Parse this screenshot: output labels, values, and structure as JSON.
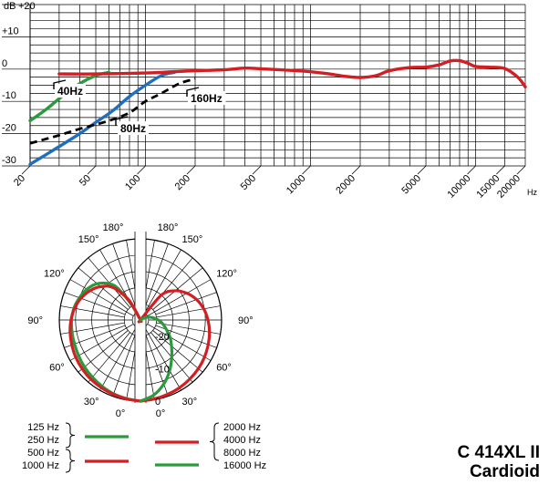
{
  "chart_data": [
    {
      "type": "line",
      "ylabel": "dB",
      "xlabel": "Hz",
      "xscale": "log",
      "xlim": [
        20,
        20000
      ],
      "ylim": [
        -30,
        20
      ],
      "grid": true,
      "y_ticks": [
        "+20",
        "+10",
        "0",
        "-10",
        "-20",
        "-30"
      ],
      "x_ticks": [
        "20",
        "50",
        "100",
        "200",
        "500",
        "1000",
        "2000",
        "5000",
        "10000",
        "15000",
        "20000"
      ],
      "series": [
        {
          "name": "40Hz",
          "color": "#2a9a3c",
          "style": "solid",
          "x": [
            20,
            25,
            32,
            40,
            50,
            60
          ],
          "y": [
            -16,
            -12.5,
            -8,
            -4.5,
            -2,
            -1
          ]
        },
        {
          "name": "80Hz",
          "color": "#1f6fbe",
          "style": "solid",
          "x": [
            20,
            30,
            40,
            50,
            63,
            80,
            100,
            125,
            150
          ],
          "y": [
            -29.5,
            -24,
            -20,
            -16.5,
            -13,
            -8.5,
            -5,
            -2,
            -1
          ]
        },
        {
          "name": "160Hz",
          "color": "#000000",
          "style": "dashed",
          "x": [
            20,
            30,
            40,
            60,
            80,
            100,
            125,
            160,
            200
          ],
          "y": [
            -23,
            -20.5,
            -18.5,
            -16,
            -13.5,
            -10,
            -7.5,
            -4.5,
            -3
          ]
        },
        {
          "color": "#d21f24",
          "style": "solid",
          "x": [
            30,
            50,
            100,
            150,
            200,
            300,
            400,
            500,
            700,
            1000,
            1300,
            1600,
            2000,
            2500,
            3000,
            4000,
            5000,
            6000,
            7000,
            8000,
            9000,
            10000,
            12000,
            15000,
            18000,
            20000
          ],
          "y": [
            -1.5,
            -1.5,
            -1.2,
            -0.8,
            -0.5,
            -0.2,
            0.3,
            0.1,
            -0.3,
            -0.8,
            -1.5,
            -2.2,
            -2.6,
            -2,
            -0.5,
            0.5,
            0.6,
            1.3,
            2.5,
            2.6,
            1.8,
            0.8,
            0.6,
            0.2,
            -2.5,
            -5.5
          ]
        }
      ],
      "annotations": [
        "40Hz",
        "80Hz",
        "160Hz"
      ]
    },
    {
      "type": "polar",
      "angle_labels": [
        "180°",
        "150°",
        "120°",
        "90°",
        "60°",
        "30°",
        "0°"
      ],
      "radial_labels": [
        "-20",
        "-10",
        "0"
      ],
      "rlim": [
        -25,
        0
      ],
      "left_half": {
        "legend": [
          "125 Hz",
          "250 Hz",
          "500 Hz",
          "1000 Hz"
        ],
        "series": [
          {
            "name": "125 Hz / 250 Hz",
            "color": "#2a9a3c",
            "angle_deg": [
              0,
              10,
              20,
              30,
              40,
              50,
              60,
              70,
              80,
              90,
              100,
              110,
              120,
              130,
              140,
              145,
              150,
              160,
              170,
              180
            ],
            "db": [
              0,
              -0.4,
              -0.8,
              -1.4,
              -2,
              -2.5,
              -3,
              -3.4,
              -3.6,
              -3.8,
              -4.2,
              -5,
              -6,
              -7.6,
              -10.5,
              -13.5,
              -20,
              -25,
              -25,
              -25
            ]
          },
          {
            "name": "500 Hz / 1000 Hz",
            "color": "#d21f24",
            "angle_deg": [
              0,
              10,
              20,
              30,
              40,
              50,
              60,
              70,
              80,
              90,
              100,
              110,
              120,
              130,
              140,
              150,
              160,
              170,
              180
            ],
            "db": [
              0,
              -0.3,
              -0.6,
              -0.9,
              -1.2,
              -1.6,
              -2,
              -2.5,
              -3,
              -3.6,
              -4.4,
              -5.5,
              -7,
              -9,
              -12,
              -18,
              -25,
              -25,
              -25
            ]
          }
        ]
      },
      "right_half": {
        "legend": [
          "2000 Hz",
          "4000 Hz",
          "8000 Hz",
          "16000 Hz"
        ],
        "series": [
          {
            "name": "2000 Hz / 4000 Hz / 8000 Hz",
            "color": "#d21f24",
            "angle_deg": [
              0,
              10,
              20,
              30,
              40,
              50,
              60,
              70,
              80,
              90,
              100,
              110,
              120,
              130,
              140,
              150,
              160,
              170,
              180
            ],
            "db": [
              0,
              -0.3,
              -0.6,
              -0.9,
              -1.3,
              -1.7,
              -2.2,
              -2.8,
              -3.4,
              -4.2,
              -5.2,
              -6.6,
              -8.5,
              -11,
              -15,
              -25,
              -25,
              -25,
              -25
            ]
          },
          {
            "name": "16000 Hz",
            "color": "#2a9a3c",
            "angle_deg": [
              0,
              10,
              20,
              30,
              40,
              50,
              60,
              70,
              80,
              90,
              100,
              110,
              120,
              130
            ],
            "db": [
              0,
              -1.5,
              -4,
              -7,
              -10,
              -12.5,
              -14.5,
              -16.5,
              -18,
              -19.5,
              -21,
              -22.5,
              -24,
              -25
            ]
          }
        ]
      }
    }
  ],
  "model": {
    "name": "C 414XL II",
    "pattern": "Cardioid"
  }
}
